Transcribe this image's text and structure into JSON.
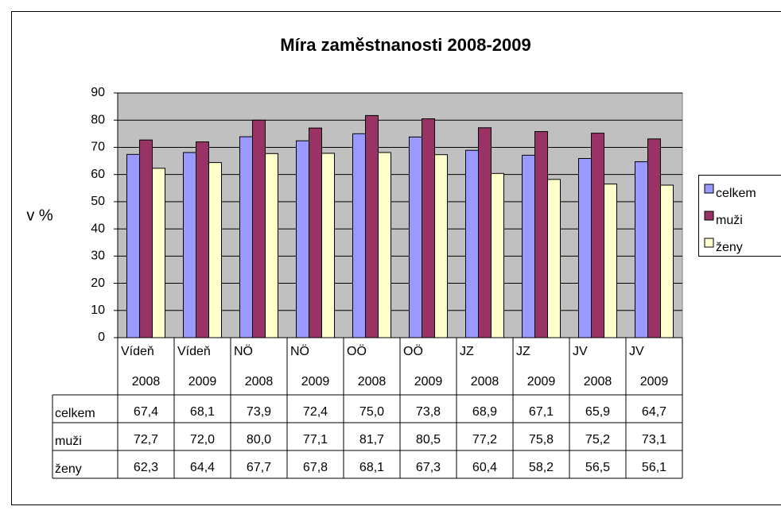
{
  "chart_data": {
    "type": "bar",
    "title": "Míra zaměstnanosti 2008-2009",
    "y_label": "v %",
    "categories": [
      [
        "Vídeň",
        "2008"
      ],
      [
        "Vídeň",
        "2009"
      ],
      [
        "NÖ",
        "2008"
      ],
      [
        "NÖ",
        "2009"
      ],
      [
        "OÖ",
        "2008"
      ],
      [
        "OÖ",
        "2009"
      ],
      [
        "JZ",
        "2008"
      ],
      [
        "JZ",
        "2009"
      ],
      [
        "JV",
        "2008"
      ],
      [
        "JV",
        "2009"
      ]
    ],
    "series": [
      {
        "name": "celkem",
        "color": "#9999ff",
        "values": [
          67.4,
          68.1,
          73.9,
          72.4,
          75.0,
          73.8,
          68.9,
          67.1,
          65.9,
          64.7
        ],
        "value_labels": [
          "67,4",
          "68,1",
          "73,9",
          "72,4",
          "75,0",
          "73,8",
          "68,9",
          "67,1",
          "65,9",
          "64,7"
        ]
      },
      {
        "name": "muži",
        "color": "#993366",
        "values": [
          72.7,
          72.0,
          80.0,
          77.1,
          81.7,
          80.5,
          77.2,
          75.8,
          75.2,
          73.1
        ],
        "value_labels": [
          "72,7",
          "72,0",
          "80,0",
          "77,1",
          "81,7",
          "80,5",
          "77,2",
          "75,8",
          "75,2",
          "73,1"
        ]
      },
      {
        "name": "ženy",
        "color": "#ffffcc",
        "values": [
          62.3,
          64.4,
          67.7,
          67.8,
          68.1,
          67.3,
          60.4,
          58.2,
          56.5,
          56.1
        ],
        "value_labels": [
          "62,3",
          "64,4",
          "67,7",
          "67,8",
          "68,1",
          "67,3",
          "60,4",
          "58,2",
          "56,5",
          "56,1"
        ]
      }
    ],
    "ylim": [
      0,
      90
    ],
    "yticks": [
      0,
      10,
      20,
      30,
      40,
      50,
      60,
      70,
      80,
      90
    ],
    "grid": true,
    "legend": "right"
  }
}
